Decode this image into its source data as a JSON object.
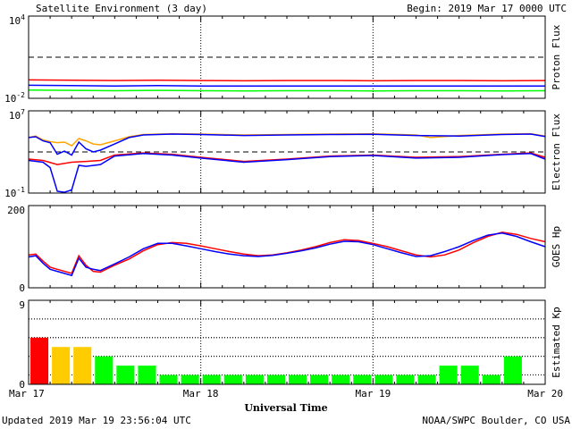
{
  "header": {
    "title": "Satellite Environment (3 day)",
    "begin": "Begin:  2019 Mar 17 0000 UTC"
  },
  "footer": {
    "updated": "Updated 2019 Mar 19 23:56:04 UTC",
    "credit": "NOAA/SWPC Boulder, CO USA"
  },
  "x_axis": {
    "title": "Universal Time",
    "ticks": [
      "Mar 17",
      "Mar 18",
      "Mar 19",
      "Mar 20"
    ],
    "range_hours": [
      0,
      72
    ]
  },
  "colors": {
    "red": "#ff0000",
    "blue": "#0000ff",
    "green": "#00ff00",
    "orange": "#ffa500",
    "yellow": "#ffcc00"
  },
  "chart_data": [
    {
      "id": "proton",
      "type": "line",
      "ylabel": "Proton Flux",
      "scale": "log",
      "ylim": [
        0.01,
        10000
      ],
      "yticks": [
        {
          "base": "10",
          "exp": "4"
        },
        {
          "base": "10",
          "exp": "-2"
        }
      ],
      "threshold": 10,
      "series": [
        {
          "color": "red",
          "x": [
            0,
            6,
            12,
            18,
            24,
            30,
            36,
            42,
            48,
            54,
            60,
            66,
            72
          ],
          "y": [
            0.22,
            0.21,
            0.2,
            0.21,
            0.2,
            0.19,
            0.2,
            0.2,
            0.19,
            0.2,
            0.2,
            0.19,
            0.2
          ]
        },
        {
          "color": "blue",
          "x": [
            0,
            6,
            12,
            18,
            24,
            30,
            36,
            42,
            48,
            54,
            60,
            66,
            72
          ],
          "y": [
            0.09,
            0.085,
            0.08,
            0.085,
            0.08,
            0.078,
            0.08,
            0.08,
            0.078,
            0.08,
            0.08,
            0.078,
            0.08
          ]
        },
        {
          "color": "green",
          "x": [
            0,
            6,
            12,
            18,
            24,
            30,
            36,
            42,
            48,
            54,
            60,
            66,
            72
          ],
          "y": [
            0.04,
            0.038,
            0.036,
            0.038,
            0.036,
            0.035,
            0.036,
            0.036,
            0.035,
            0.036,
            0.036,
            0.035,
            0.036
          ]
        }
      ]
    },
    {
      "id": "electron",
      "type": "line",
      "ylabel": "Electron Flux",
      "scale": "log",
      "ylim": [
        0.1,
        10000000
      ],
      "yticks": [
        {
          "base": "10",
          "exp": "7"
        },
        {
          "base": "10",
          "exp": "-1"
        }
      ],
      "threshold": 1000,
      "series": [
        {
          "color": "orange",
          "x": [
            0,
            1,
            2,
            3,
            4,
            5,
            6,
            7,
            8,
            9,
            10,
            12,
            14,
            16,
            20,
            24,
            30,
            36,
            42,
            48,
            54,
            56,
            60,
            66,
            70,
            72
          ],
          "y": [
            25000,
            35000,
            15000,
            10000,
            8000,
            9000,
            4000,
            20000,
            12000,
            6000,
            5000,
            12000,
            30000,
            50000,
            60000,
            55000,
            45000,
            50000,
            55000,
            58000,
            45000,
            25000,
            40000,
            55000,
            60000,
            35000
          ]
        },
        {
          "color": "blue",
          "x": [
            0,
            1,
            2,
            3,
            4,
            5,
            6,
            7,
            8,
            9,
            10,
            12,
            14,
            16,
            20,
            24,
            30,
            36,
            42,
            48,
            54,
            60,
            66,
            70,
            72
          ],
          "y": [
            25000,
            30000,
            12000,
            8000,
            600,
            1200,
            500,
            9000,
            2000,
            1000,
            1500,
            6000,
            25000,
            45000,
            55000,
            50000,
            40000,
            45000,
            50000,
            52000,
            40000,
            35000,
            50000,
            55000,
            32000
          ]
        },
        {
          "color": "red",
          "x": [
            0,
            2,
            4,
            6,
            8,
            10,
            12,
            16,
            20,
            24,
            30,
            36,
            42,
            48,
            54,
            60,
            66,
            70,
            72
          ],
          "y": [
            200,
            150,
            60,
            100,
            120,
            150,
            500,
            800,
            600,
            300,
            120,
            200,
            400,
            500,
            300,
            350,
            600,
            800,
            300
          ]
        },
        {
          "color": "blue",
          "x": [
            0,
            2,
            3,
            4,
            5,
            6,
            7,
            8,
            10,
            12,
            16,
            20,
            24,
            30,
            36,
            42,
            48,
            54,
            60,
            66,
            70,
            72
          ],
          "y": [
            150,
            100,
            30,
            0.15,
            0.12,
            0.2,
            50,
            40,
            60,
            400,
            700,
            500,
            250,
            100,
            180,
            350,
            450,
            250,
            300,
            550,
            700,
            200
          ]
        }
      ]
    },
    {
      "id": "hp",
      "type": "line",
      "ylabel": "GOES Hp",
      "scale": "linear",
      "ylim": [
        0,
        200
      ],
      "yticks": [
        {
          "base": "200",
          "exp": ""
        },
        {
          "base": "0",
          "exp": ""
        }
      ],
      "series": [
        {
          "color": "red",
          "x": [
            0,
            1,
            2,
            3,
            4,
            6,
            7,
            8,
            9,
            10,
            12,
            14,
            16,
            18,
            20,
            22,
            24,
            26,
            28,
            30,
            32,
            34,
            36,
            38,
            40,
            42,
            44,
            46,
            48,
            50,
            52,
            54,
            56,
            58,
            60,
            62,
            64,
            66,
            68,
            70,
            72
          ],
          "y": [
            80,
            82,
            65,
            50,
            45,
            35,
            78,
            55,
            40,
            38,
            55,
            70,
            90,
            105,
            110,
            108,
            102,
            95,
            88,
            82,
            78,
            80,
            85,
            92,
            100,
            110,
            117,
            115,
            108,
            100,
            90,
            80,
            75,
            80,
            92,
            110,
            125,
            135,
            130,
            120,
            112
          ]
        },
        {
          "color": "blue",
          "x": [
            0,
            1,
            2,
            3,
            4,
            6,
            7,
            8,
            9,
            10,
            12,
            14,
            16,
            18,
            20,
            22,
            24,
            26,
            28,
            30,
            32,
            34,
            36,
            38,
            40,
            42,
            44,
            46,
            48,
            50,
            52,
            54,
            56,
            58,
            60,
            62,
            64,
            66,
            68,
            70,
            72
          ],
          "y": [
            75,
            78,
            60,
            45,
            40,
            30,
            72,
            50,
            45,
            42,
            58,
            75,
            95,
            108,
            108,
            102,
            95,
            88,
            82,
            78,
            76,
            79,
            84,
            90,
            97,
            106,
            113,
            112,
            105,
            95,
            85,
            76,
            78,
            88,
            100,
            115,
            128,
            133,
            125,
            112,
            100
          ]
        }
      ]
    },
    {
      "id": "kp",
      "type": "bar",
      "ylabel": "Estimated Kp",
      "scale": "linear",
      "ylim": [
        0,
        9
      ],
      "yticks": [
        {
          "base": "9",
          "exp": ""
        },
        {
          "base": "0",
          "exp": ""
        }
      ],
      "bar_width_hours": 3,
      "values": [
        5,
        4,
        4,
        3,
        2,
        2,
        1,
        1,
        1,
        1,
        1,
        1,
        1,
        1,
        1,
        1,
        1,
        1,
        1,
        2,
        2,
        1,
        3
      ],
      "colors": [
        "red",
        "yellow",
        "yellow",
        "green",
        "green",
        "green",
        "green",
        "green",
        "green",
        "green",
        "green",
        "green",
        "green",
        "green",
        "green",
        "green",
        "green",
        "green",
        "green",
        "green",
        "green",
        "green",
        "green"
      ]
    }
  ]
}
